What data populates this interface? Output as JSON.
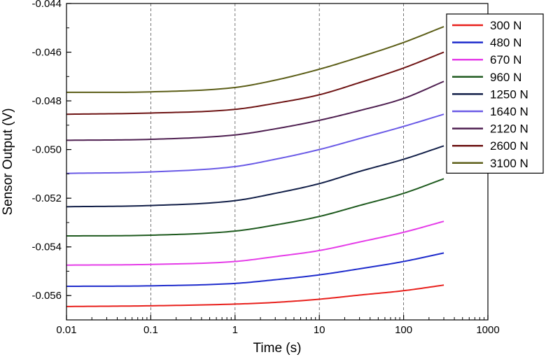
{
  "chart_data": {
    "type": "line",
    "title": "",
    "xlabel": "Time (s)",
    "ylabel": "Sensor Output (V)",
    "x_scale": "log",
    "xlim": [
      0.01,
      1000
    ],
    "ylim": [
      -0.057,
      -0.044
    ],
    "x_ticks": [
      "0.01",
      "0.1",
      "1",
      "10",
      "100",
      "1000"
    ],
    "y_ticks": [
      "-0.044",
      "-0.046",
      "-0.048",
      "-0.050",
      "-0.052",
      "-0.054",
      "-0.056"
    ],
    "grid": "vertical dashed at major x ticks",
    "legend_position": "top-right",
    "x": [
      0.01,
      0.1,
      1,
      3,
      10,
      30,
      100,
      300
    ],
    "series": [
      {
        "name": "300 N",
        "color": "#e8201c",
        "values": [
          -0.05645,
          -0.05642,
          -0.05635,
          -0.05628,
          -0.05615,
          -0.05598,
          -0.0558,
          -0.05557
        ]
      },
      {
        "name": "480 N",
        "color": "#1f2ccc",
        "values": [
          -0.05562,
          -0.0556,
          -0.0555,
          -0.05535,
          -0.05515,
          -0.0549,
          -0.0546,
          -0.05425
        ]
      },
      {
        "name": "670 N",
        "color": "#e53ce8",
        "values": [
          -0.05475,
          -0.05472,
          -0.0546,
          -0.0544,
          -0.05415,
          -0.0538,
          -0.0534,
          -0.05295
        ]
      },
      {
        "name": "960 N",
        "color": "#1e5a1e",
        "values": [
          -0.05355,
          -0.05352,
          -0.05335,
          -0.0531,
          -0.05275,
          -0.0523,
          -0.0518,
          -0.0512
        ]
      },
      {
        "name": "1250 N",
        "color": "#121f48",
        "values": [
          -0.05235,
          -0.0523,
          -0.0521,
          -0.0518,
          -0.0514,
          -0.0509,
          -0.0504,
          -0.04985
        ]
      },
      {
        "name": "1640 N",
        "color": "#6a5ae6",
        "values": [
          -0.05098,
          -0.05092,
          -0.0507,
          -0.0504,
          -0.05,
          -0.04955,
          -0.04905,
          -0.04855
        ]
      },
      {
        "name": "2120 N",
        "color": "#4e1f50",
        "values": [
          -0.04962,
          -0.04958,
          -0.0494,
          -0.04915,
          -0.0488,
          -0.0484,
          -0.0479,
          -0.0472
        ]
      },
      {
        "name": "2600 N",
        "color": "#6e1414",
        "values": [
          -0.04855,
          -0.0485,
          -0.04835,
          -0.0481,
          -0.04775,
          -0.04725,
          -0.04665,
          -0.046
        ]
      },
      {
        "name": "3100 N",
        "color": "#5c5e18",
        "values": [
          -0.04765,
          -0.04763,
          -0.04745,
          -0.04715,
          -0.0467,
          -0.0462,
          -0.0456,
          -0.04495
        ]
      }
    ]
  }
}
